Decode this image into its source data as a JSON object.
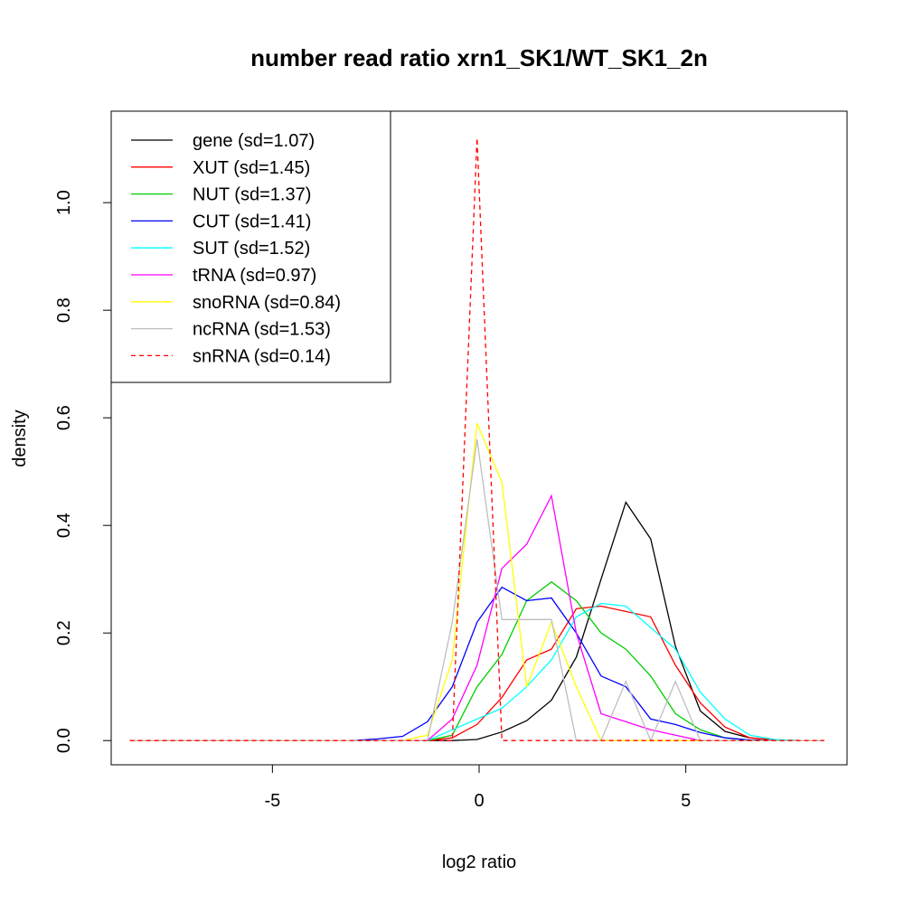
{
  "chart_data": {
    "type": "line",
    "title": "number read ratio xrn1_SK1/WT_SK1_2n",
    "xlabel": "log2 ratio",
    "ylabel": "density",
    "xlim": [
      -8.9,
      8.9
    ],
    "ylim": [
      -0.045,
      1.17
    ],
    "xticks": [
      -5,
      0,
      5
    ],
    "xtick_labels": [
      "-5",
      "0",
      "5"
    ],
    "yticks": [
      0,
      0.2,
      0.4,
      0.6,
      0.8,
      1.0
    ],
    "ytick_labels": [
      "0.0",
      "0.2",
      "0.4",
      "0.6",
      "0.8",
      "1.0"
    ],
    "grid": false,
    "legend_position": "top-left",
    "x": [
      -8.45,
      -7.85,
      -7.25,
      -6.65,
      -6.05,
      -5.45,
      -4.85,
      -4.25,
      -3.65,
      -3.05,
      -2.45,
      -1.85,
      -1.25,
      -0.65,
      -0.05,
      0.55,
      1.15,
      1.75,
      2.35,
      2.95,
      3.55,
      4.15,
      4.75,
      5.35,
      5.95,
      6.55,
      7.15,
      7.75,
      8.35
    ],
    "series": [
      {
        "name": "gene (sd=1.07)",
        "color": "#000000",
        "dash": "solid",
        "values": [
          0,
          0,
          0,
          0,
          0,
          0,
          0,
          0,
          0,
          0,
          0,
          0,
          0,
          0,
          0.002,
          0.016,
          0.037,
          0.075,
          0.155,
          0.3,
          0.443,
          0.375,
          0.175,
          0.055,
          0.017,
          0.005,
          0.001,
          0,
          0
        ]
      },
      {
        "name": "XUT (sd=1.45)",
        "color": "#ff0000",
        "dash": "solid",
        "values": [
          0,
          0,
          0,
          0,
          0,
          0,
          0,
          0,
          0,
          0,
          0,
          0,
          0,
          0.005,
          0.03,
          0.08,
          0.15,
          0.17,
          0.245,
          0.25,
          0.24,
          0.23,
          0.14,
          0.07,
          0.025,
          0.005,
          0.001,
          0,
          0
        ]
      },
      {
        "name": "NUT (sd=1.37)",
        "color": "#00cd00",
        "dash": "solid",
        "values": [
          0,
          0,
          0,
          0,
          0,
          0,
          0,
          0,
          0,
          0,
          0,
          0,
          0,
          0.01,
          0.1,
          0.16,
          0.26,
          0.295,
          0.26,
          0.2,
          0.17,
          0.12,
          0.05,
          0.02,
          0.005,
          0.001,
          0,
          0,
          0
        ]
      },
      {
        "name": "CUT (sd=1.41)",
        "color": "#0000ff",
        "dash": "solid",
        "values": [
          0,
          0,
          0,
          0,
          0,
          0,
          0,
          0,
          0,
          0,
          0.003,
          0.008,
          0.035,
          0.1,
          0.22,
          0.285,
          0.26,
          0.265,
          0.2,
          0.12,
          0.1,
          0.04,
          0.03,
          0.015,
          0.005,
          0.001,
          0,
          0,
          0
        ]
      },
      {
        "name": "SUT (sd=1.52)",
        "color": "#00ffff",
        "dash": "solid",
        "values": [
          0,
          0,
          0,
          0,
          0,
          0,
          0,
          0,
          0,
          0,
          0,
          0,
          0,
          0.02,
          0.04,
          0.06,
          0.1,
          0.15,
          0.23,
          0.255,
          0.25,
          0.21,
          0.17,
          0.09,
          0.04,
          0.01,
          0.002,
          0,
          0
        ]
      },
      {
        "name": "tRNA (sd=0.97)",
        "color": "#ff00ff",
        "dash": "solid",
        "values": [
          0,
          0,
          0,
          0,
          0,
          0,
          0,
          0,
          0,
          0,
          0,
          0,
          0,
          0.04,
          0.14,
          0.32,
          0.365,
          0.455,
          0.2,
          0.05,
          0.035,
          0.02,
          0.01,
          0,
          0,
          0,
          0,
          0,
          0
        ]
      },
      {
        "name": "snoRNA (sd=0.84)",
        "color": "#ffff00",
        "dash": "solid",
        "values": [
          0,
          0,
          0,
          0,
          0,
          0,
          0,
          0,
          0,
          0,
          0,
          0,
          0.01,
          0.15,
          0.59,
          0.48,
          0.1,
          0.22,
          0.1,
          0,
          0,
          0,
          0,
          0,
          0,
          0,
          0,
          0,
          0
        ]
      },
      {
        "name": "ncRNA (sd=1.53)",
        "color": "#bebebe",
        "dash": "solid",
        "values": [
          0,
          0,
          0,
          0,
          0,
          0,
          0,
          0,
          0,
          0,
          0,
          0,
          0,
          0.22,
          0.56,
          0.225,
          0.225,
          0.225,
          0,
          0,
          0.11,
          0,
          0.11,
          0,
          0,
          0,
          0,
          0,
          0
        ]
      },
      {
        "name": "snRNA (sd=0.14)",
        "color": "#ff0000",
        "dash": "dashed",
        "values": [
          0,
          0,
          0,
          0,
          0,
          0,
          0,
          0,
          0,
          0,
          0,
          0,
          0,
          0,
          1.12,
          0,
          0,
          0,
          0,
          0,
          0,
          0,
          0,
          0,
          0,
          0,
          0,
          0,
          0
        ]
      }
    ]
  }
}
